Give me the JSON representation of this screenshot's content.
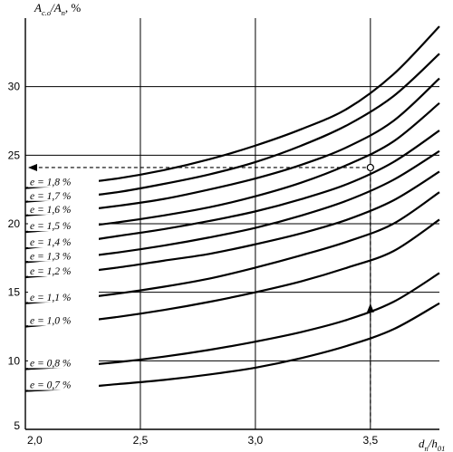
{
  "chart_data": {
    "type": "line",
    "ylabel_parts": [
      "A",
      "c.o",
      "/A",
      "n",
      ", %"
    ],
    "xlabel_parts": [
      "d",
      "n",
      "/h",
      "01"
    ],
    "xlim": [
      2.0,
      3.8
    ],
    "ylim": [
      5,
      35
    ],
    "x_ticks": [
      {
        "value": 2.0,
        "label": "2,0"
      },
      {
        "value": 2.5,
        "label": "2,5"
      },
      {
        "value": 3.0,
        "label": "3,0"
      },
      {
        "value": 3.5,
        "label": "3,5"
      }
    ],
    "y_ticks": [
      {
        "value": 5,
        "label": "5"
      },
      {
        "value": 10,
        "label": "10"
      },
      {
        "value": 15,
        "label": "15"
      },
      {
        "value": 20,
        "label": "20"
      },
      {
        "value": 25,
        "label": "25"
      },
      {
        "value": 30,
        "label": "30"
      }
    ],
    "grid": true,
    "x": [
      2.0,
      2.2,
      2.4,
      2.6,
      2.8,
      3.0,
      3.2,
      3.4,
      3.6,
      3.8
    ],
    "series": [
      {
        "label": "e = 1,8 %",
        "values": [
          22.6,
          22.9,
          23.3,
          23.9,
          24.7,
          25.7,
          26.9,
          28.4,
          30.9,
          34.4
        ]
      },
      {
        "label": "e = 1,7 %",
        "values": [
          21.6,
          21.9,
          22.3,
          22.9,
          23.6,
          24.5,
          25.7,
          27.2,
          29.3,
          32.4
        ]
      },
      {
        "label": "e = 1,6 %",
        "values": [
          20.6,
          20.9,
          21.3,
          21.8,
          22.5,
          23.3,
          24.3,
          25.6,
          27.5,
          30.6
        ]
      },
      {
        "label": "e = 1,5 %",
        "values": [
          19.4,
          19.7,
          20.1,
          20.6,
          21.2,
          22.0,
          23.0,
          24.3,
          26.0,
          28.8
        ]
      },
      {
        "label": "e = 1,4 %",
        "values": [
          18.2,
          18.6,
          19.1,
          19.6,
          20.2,
          20.9,
          21.8,
          22.9,
          24.5,
          26.8
        ]
      },
      {
        "label": "e = 1,3 %",
        "values": [
          17.2,
          17.5,
          17.9,
          18.4,
          19.0,
          19.7,
          20.6,
          21.7,
          23.2,
          25.3
        ]
      },
      {
        "label": "e = 1,2 %",
        "values": [
          16.1,
          16.4,
          16.8,
          17.3,
          17.8,
          18.5,
          19.3,
          20.3,
          21.7,
          23.8
        ]
      },
      {
        "label": "e = 1,1 %",
        "values": [
          14.2,
          14.5,
          14.9,
          15.4,
          16.0,
          16.8,
          17.7,
          18.7,
          20.0,
          22.3
        ]
      },
      {
        "label": "e = 1,0 %",
        "values": [
          12.5,
          12.8,
          13.2,
          13.7,
          14.3,
          15.0,
          15.8,
          16.8,
          18.0,
          20.3
        ]
      },
      {
        "label": "e = 0,8 %",
        "values": [
          9.4,
          9.6,
          9.9,
          10.3,
          10.8,
          11.4,
          12.1,
          13.0,
          14.3,
          16.4
        ]
      },
      {
        "label": "e = 0,7 %",
        "values": [
          7.8,
          8.0,
          8.3,
          8.6,
          9.0,
          9.5,
          10.2,
          11.1,
          12.3,
          14.2
        ]
      }
    ],
    "annotation": {
      "point": {
        "x": 3.5,
        "y": 24.1
      },
      "arrow_up_from_y": 5.5,
      "arrow_left_to_x": 2.0
    }
  }
}
